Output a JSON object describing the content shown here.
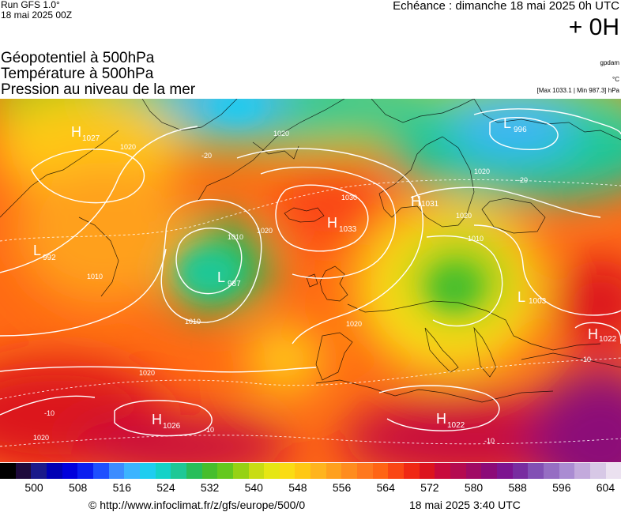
{
  "header": {
    "run_label": "Run GFS 1.0°",
    "run_date": "18 mai 2025 00Z",
    "valid_label": "Echéance : dimanche 18 mai 2025 0h UTC",
    "hour_label": "+ 0H"
  },
  "titles": {
    "line1": "Géopotentiel à 500hPa",
    "line2": "Température à 500hPa",
    "line3": "Pression au niveau de la mer"
  },
  "units": {
    "geopotential": "gpdam",
    "temperature": "°C",
    "pressure_range": "[Max 1033.1 | Min 987.3] hPa"
  },
  "pressure_centers": [
    {
      "type": "H",
      "value": "1027",
      "color": "#ffffff"
    },
    {
      "type": "L",
      "value": "996",
      "color": "#ffffff"
    },
    {
      "type": "H",
      "value": "1033",
      "color": "#ffffff"
    },
    {
      "type": "H",
      "value": "1031",
      "color": "#ffffff"
    },
    {
      "type": "L",
      "value": "992",
      "color": "#ffffff"
    },
    {
      "type": "L",
      "value": "987",
      "color": "#ffffff"
    },
    {
      "type": "L",
      "value": "1003",
      "color": "#ffffff"
    },
    {
      "type": "H",
      "value": "1022",
      "color": "#ffffff"
    },
    {
      "type": "H",
      "value": "1026",
      "color": "#ffffff"
    },
    {
      "type": "H",
      "value": "1022",
      "color": "#ffffff"
    }
  ],
  "isobar_labels": [
    "1020",
    "1020",
    "1030",
    "1010",
    "1020",
    "1010",
    "1010",
    "1020",
    "1020",
    "1020",
    "1020",
    "1010",
    "1020"
  ],
  "temperature_labels": [
    "-20",
    "-20",
    "-10",
    "-10",
    "-10",
    "-10"
  ],
  "scale": {
    "colors": [
      "#000000",
      "#1e0a3c",
      "#1a1a8a",
      "#0000b4",
      "#0000dc",
      "#0a1ef0",
      "#1e50ff",
      "#3c8cff",
      "#3cb4ff",
      "#1ecdf0",
      "#14d2c8",
      "#1ec896",
      "#28be5a",
      "#46be2d",
      "#64c81e",
      "#96d214",
      "#c8dc14",
      "#e6e614",
      "#fadc14",
      "#ffc814",
      "#ffb41e",
      "#ffa01e",
      "#ff8c1e",
      "#ff781e",
      "#ff6414",
      "#fa4614",
      "#f02814",
      "#dc141e",
      "#c80a3c",
      "#b40a50",
      "#a00a64",
      "#8c0a78",
      "#7d1490",
      "#782da0",
      "#8250b4",
      "#966ec3",
      "#aa8cd2",
      "#c3aadc",
      "#d7c8e6",
      "#ebe1f0"
    ],
    "tick_labels": [
      "500",
      "508",
      "516",
      "524",
      "532",
      "540",
      "548",
      "556",
      "564",
      "572",
      "580",
      "588",
      "596",
      "604"
    ]
  },
  "footer": {
    "credit": "© http://www.infoclimat.fr/z/gfs/europe/500/0",
    "time": "18 mai 2025  3:40 UTC"
  }
}
